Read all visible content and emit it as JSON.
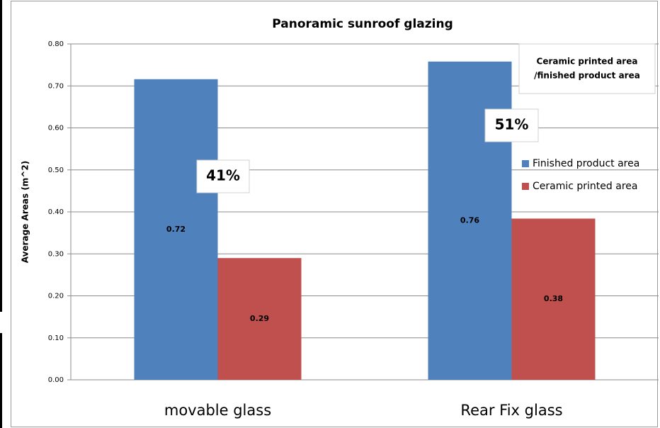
{
  "chart_data": {
    "type": "bar",
    "title": "Panoramic sunroof glazing",
    "y_label": "Average Areas (m^2)",
    "categories": [
      "movable glass",
      "Rear Fix glass"
    ],
    "series": [
      {
        "name": "Finished product area",
        "color": "#4f81bd",
        "values": [
          0.716,
          0.758
        ],
        "value_labels": [
          "0.72",
          "0.76"
        ]
      },
      {
        "name": "Ceramic printed area",
        "color": "#c0504d",
        "values": [
          0.29,
          0.384
        ],
        "value_labels": [
          "0.29",
          "0.38"
        ]
      }
    ],
    "ylim": [
      0,
      0.8
    ],
    "yticks": [
      {
        "value": 0,
        "label": "0.00"
      },
      {
        "value": 0.1,
        "label": "0.10"
      },
      {
        "value": 0.2,
        "label": "0.20"
      },
      {
        "value": 0.3,
        "label": "0.30"
      },
      {
        "value": 0.4,
        "label": "0.40"
      },
      {
        "value": 0.5,
        "label": "0.50"
      },
      {
        "value": 0.6,
        "label": "0.60"
      },
      {
        "value": 0.7,
        "label": "0.70"
      },
      {
        "value": 0.8,
        "label": "0.80"
      }
    ],
    "grid": true,
    "legend": "right",
    "annotations": [
      {
        "text": [
          "Ceramic printed area",
          "/finished product area"
        ]
      },
      {
        "text": [
          "41%"
        ]
      },
      {
        "text": [
          "51%"
        ]
      }
    ]
  }
}
